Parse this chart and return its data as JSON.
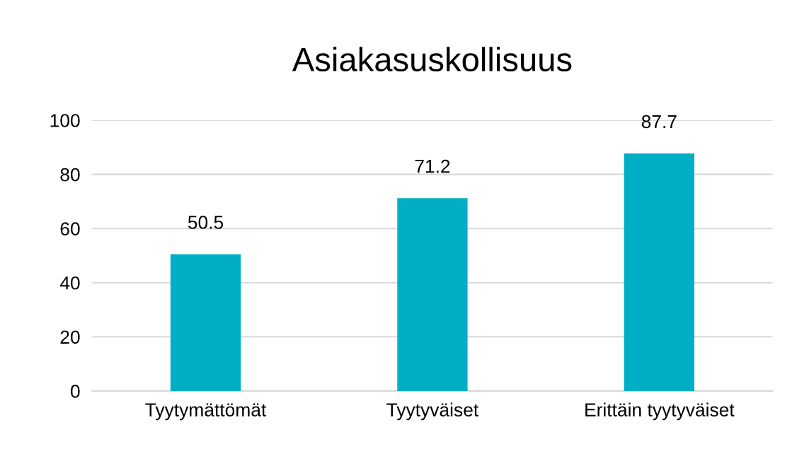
{
  "chart_data": {
    "type": "bar",
    "title": "Asiakasuskollisuus",
    "categories": [
      "Tyytymättömät",
      "Tyytyväiset",
      "Erittäin tyytyväiset"
    ],
    "values": [
      50.5,
      71.2,
      87.7
    ],
    "color": "#00afc6",
    "ylim": [
      0,
      100
    ],
    "yticks": [
      0,
      20,
      40,
      60,
      80,
      100
    ],
    "grid": "y",
    "data_labels": true,
    "legend": false
  }
}
